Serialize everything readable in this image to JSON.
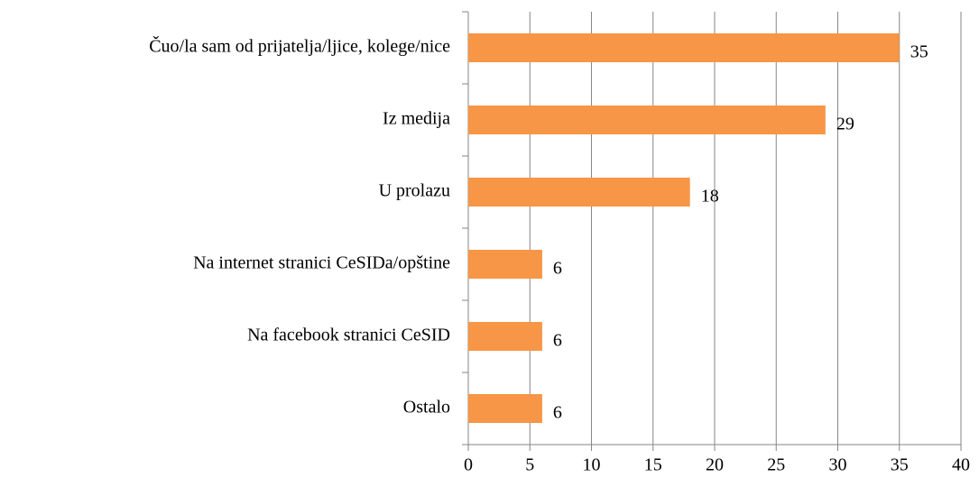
{
  "chart_data": {
    "type": "bar",
    "orientation": "horizontal",
    "categories": [
      "Čuo/la sam od prijatelja/ljice, kolege/nice",
      "Iz medija",
      "U prolazu",
      "Na internet stranici CeSIDa/opštine",
      "Na facebook stranici CeSID",
      "Ostalo"
    ],
    "values": [
      35,
      29,
      18,
      6,
      6,
      6
    ],
    "color": "#f79646",
    "xlim": [
      0,
      40
    ],
    "xticks": [
      0,
      5,
      10,
      15,
      20,
      25,
      30,
      35,
      40
    ],
    "grid": true
  }
}
